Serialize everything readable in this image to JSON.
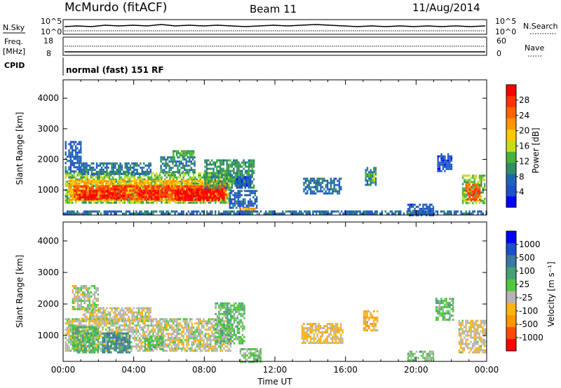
{
  "header": {
    "station": "McMurdo (fitACF)",
    "beam": "Beam 11",
    "date": "11/Aug/2014"
  },
  "status_panels": {
    "nsky_label": "N.Sky",
    "nsky_ticks": [
      "10^5",
      "10^0"
    ],
    "nsearch_ticks": [
      "10^5",
      "10^0"
    ],
    "nsearch_label": "N.Search",
    "freq_label_1": "Freq.",
    "freq_label_2": "[MHz]",
    "freq_ticks": [
      "18",
      "8"
    ],
    "nave_ticks": [
      "60",
      "0"
    ],
    "nave_label": "Nave",
    "cpid_label": "CPID",
    "cpid_text": "normal (fast) 151 RF"
  },
  "chart_data": [
    {
      "type": "heatmap",
      "title": "Power",
      "xlabel": "Time UT",
      "ylabel": "Slant Range [km]",
      "xlim": [
        "00:00",
        "24:00"
      ],
      "ylim": [
        180,
        4600
      ],
      "x_ticks": [
        "00:00",
        "04:00",
        "08:00",
        "12:00",
        "16:00",
        "20:00",
        "00:00"
      ],
      "y_ticks": [
        1000,
        2000,
        3000,
        4000
      ],
      "colorbar": {
        "label": "Power [dB]",
        "ticks": [
          "4",
          "8",
          "12",
          "16",
          "20",
          "24",
          "28"
        ],
        "range": [
          0,
          30
        ],
        "colors": [
          "#0000ff",
          "#1e50c8",
          "#1e64b4",
          "#328c64",
          "#46b43c",
          "#c8dc1e",
          "#ffc800",
          "#ff9600",
          "#ff6400",
          "#ff3200",
          "#ff0000"
        ]
      },
      "regions": [
        {
          "t0": 0.1,
          "t1": 9.5,
          "r0": 560,
          "r1": 1580,
          "v": 13
        },
        {
          "t0": 0.3,
          "t1": 9.3,
          "r0": 660,
          "r1": 1330,
          "v": 19
        },
        {
          "t0": 0.6,
          "t1": 9.2,
          "r0": 700,
          "r1": 1150,
          "v": 25
        },
        {
          "t0": 0.9,
          "t1": 1.9,
          "r0": 680,
          "r1": 1000,
          "v": 29
        },
        {
          "t0": 2.1,
          "t1": 3.5,
          "r0": 750,
          "r1": 1050,
          "v": 28
        },
        {
          "t0": 4.2,
          "t1": 5.4,
          "r0": 720,
          "r1": 1000,
          "v": 28
        },
        {
          "t0": 6.3,
          "t1": 9.1,
          "r0": 700,
          "r1": 1050,
          "v": 29
        },
        {
          "t0": 0.1,
          "t1": 1.0,
          "r0": 1600,
          "r1": 2600,
          "v": 6
        },
        {
          "t0": 1.0,
          "t1": 5.0,
          "r0": 1500,
          "r1": 1900,
          "v": 8
        },
        {
          "t0": 5.5,
          "t1": 7.5,
          "r0": 1600,
          "r1": 2100,
          "v": 9
        },
        {
          "t0": 8.0,
          "t1": 10.8,
          "r0": 1100,
          "r1": 2000,
          "v": 10
        },
        {
          "t0": 9.4,
          "t1": 11.0,
          "r0": 400,
          "r1": 1000,
          "v": 6
        },
        {
          "t0": 10.0,
          "t1": 10.9,
          "r0": 280,
          "r1": 420,
          "v": 20
        },
        {
          "t0": 6.2,
          "t1": 7.4,
          "r0": 2100,
          "r1": 2300,
          "v": 12
        },
        {
          "t0": 9.8,
          "t1": 10.6,
          "r0": 1050,
          "r1": 1450,
          "v": 5
        },
        {
          "t0": 13.6,
          "t1": 15.7,
          "r0": 900,
          "r1": 1400,
          "v": 7
        },
        {
          "t0": 17.1,
          "t1": 17.7,
          "r0": 1200,
          "r1": 1750,
          "v": 9
        },
        {
          "t0": 17.3,
          "t1": 17.6,
          "r0": 1300,
          "r1": 1550,
          "v": 13
        },
        {
          "t0": 19.5,
          "t1": 21.0,
          "r0": 200,
          "r1": 550,
          "v": 5
        },
        {
          "t0": 21.2,
          "t1": 22.0,
          "r0": 1600,
          "r1": 2200,
          "v": 5
        },
        {
          "t0": 22.6,
          "t1": 23.9,
          "r0": 560,
          "r1": 1500,
          "v": 13
        },
        {
          "t0": 22.8,
          "t1": 23.6,
          "r0": 700,
          "r1": 1200,
          "v": 24
        },
        {
          "t0": 0.0,
          "t1": 24.0,
          "r0": 200,
          "r1": 330,
          "v": 7
        }
      ]
    },
    {
      "type": "heatmap",
      "title": "Velocity",
      "xlabel": "Time UT",
      "ylabel": "Slant Range [km]",
      "xlim": [
        "00:00",
        "24:00"
      ],
      "ylim": [
        180,
        4600
      ],
      "x_ticks": [
        "00:00",
        "04:00",
        "08:00",
        "12:00",
        "16:00",
        "20:00",
        "00:00"
      ],
      "y_ticks": [
        1000,
        2000,
        3000,
        4000
      ],
      "colorbar": {
        "label": "Velocity [m s⁻¹]",
        "ticks": [
          "1000",
          "500",
          "100",
          "25",
          "-25",
          "-100",
          "-500",
          "-1000"
        ],
        "range": [
          -1200,
          1200
        ],
        "colors": [
          "#ff0000",
          "#ff4b00",
          "#ff9600",
          "#ffb414",
          "#b4b4b4",
          "#50c83c",
          "#46a078",
          "#3c78a0",
          "#1e50c8",
          "#0000ff"
        ]
      },
      "regions": [
        {
          "t0": 0.1,
          "t1": 9.5,
          "r0": 500,
          "r1": 1550,
          "v": -140
        },
        {
          "t0": 0.5,
          "t1": 2.0,
          "r0": 450,
          "r1": 1300,
          "v": 250
        },
        {
          "t0": 2.2,
          "t1": 3.8,
          "r0": 500,
          "r1": 1100,
          "v": 500
        },
        {
          "t0": 4.6,
          "t1": 5.6,
          "r0": 550,
          "r1": 1000,
          "v": 180
        },
        {
          "t0": 8.6,
          "t1": 10.3,
          "r0": 750,
          "r1": 2050,
          "v": 150
        },
        {
          "t0": 1.0,
          "t1": 5.0,
          "r0": 1500,
          "r1": 1900,
          "v": -150
        },
        {
          "t0": 0.5,
          "t1": 2.0,
          "r0": 1850,
          "r1": 2600,
          "v": -80
        },
        {
          "t0": 13.5,
          "t1": 15.8,
          "r0": 800,
          "r1": 1400,
          "v": -300
        },
        {
          "t0": 17.0,
          "t1": 17.8,
          "r0": 1200,
          "r1": 1800,
          "v": -400
        },
        {
          "t0": 21.1,
          "t1": 22.1,
          "r0": 1500,
          "r1": 2200,
          "v": 150
        },
        {
          "t0": 22.4,
          "t1": 24.0,
          "r0": 500,
          "r1": 1500,
          "v": -200
        },
        {
          "t0": 19.5,
          "t1": 21.0,
          "r0": 200,
          "r1": 520,
          "v": 60
        },
        {
          "t0": 10.0,
          "t1": 11.2,
          "r0": 200,
          "r1": 600,
          "v": 80
        }
      ]
    }
  ],
  "colors": {
    "frame": "#000000"
  }
}
